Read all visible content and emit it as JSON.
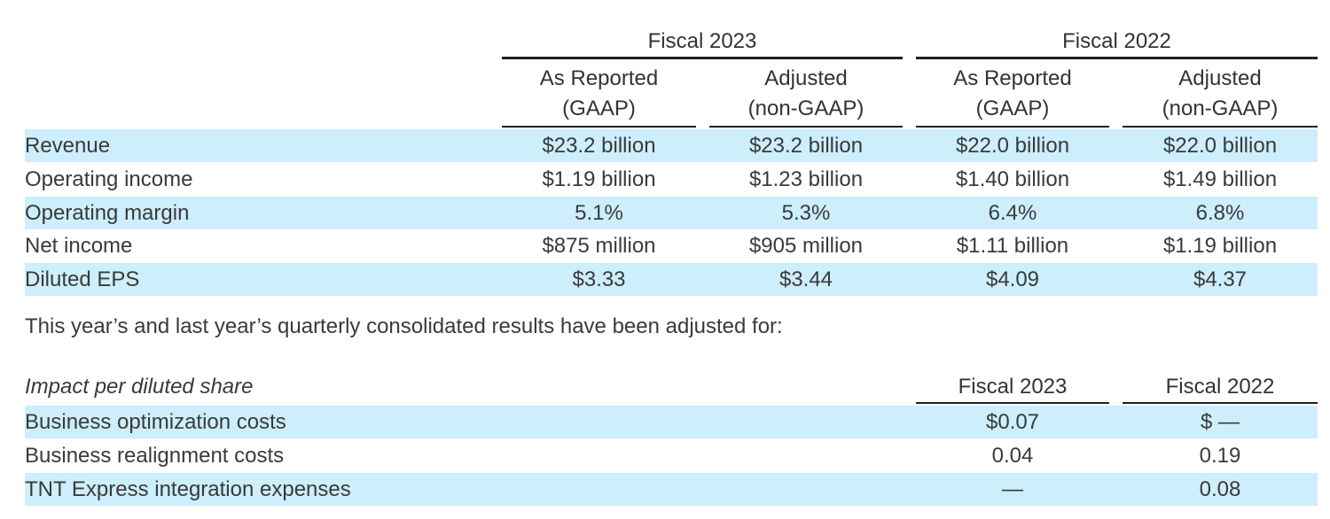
{
  "main_table": {
    "groups": [
      {
        "label": "Fiscal 2023"
      },
      {
        "label": "Fiscal 2022"
      }
    ],
    "columns": [
      {
        "line1": "As Reported",
        "line2": "(GAAP)"
      },
      {
        "line1": "Adjusted",
        "line2": "(non-GAAP)"
      },
      {
        "line1": "As Reported",
        "line2": "(GAAP)"
      },
      {
        "line1": "Adjusted",
        "line2": "(non-GAAP)"
      }
    ],
    "rows": [
      {
        "label": "Revenue",
        "v": [
          "$23.2 billion",
          "$23.2 billion",
          "$22.0 billion",
          "$22.0 billion"
        ]
      },
      {
        "label": "Operating income",
        "v": [
          "$1.19 billion",
          "$1.23 billion",
          "$1.40 billion",
          "$1.49 billion"
        ]
      },
      {
        "label": "Operating margin",
        "v": [
          "5.1%",
          "5.3%",
          "6.4%",
          "6.8%"
        ]
      },
      {
        "label": "Net income",
        "v": [
          "$875 million",
          "$905 million",
          "$1.11 billion",
          "$1.19 billion"
        ]
      },
      {
        "label": "Diluted EPS",
        "v": [
          "$3.33",
          "$3.44",
          "$4.09",
          "$4.37"
        ]
      }
    ]
  },
  "note": "This year’s and last year’s quarterly consolidated results have been adjusted for:",
  "impact_table": {
    "title": "Impact per diluted share",
    "columns": [
      "Fiscal 2023",
      "Fiscal 2022"
    ],
    "rows": [
      {
        "label": "Business optimization costs",
        "v": [
          "$0.07",
          "$ —"
        ]
      },
      {
        "label": "Business realignment costs",
        "v": [
          "0.04",
          "0.19"
        ]
      },
      {
        "label": "TNT Express integration expenses",
        "v": [
          "—",
          "0.08"
        ]
      }
    ]
  },
  "colors": {
    "row_shade": "#cdeefb",
    "rule": "#222222",
    "text": "#3a3a3a"
  }
}
